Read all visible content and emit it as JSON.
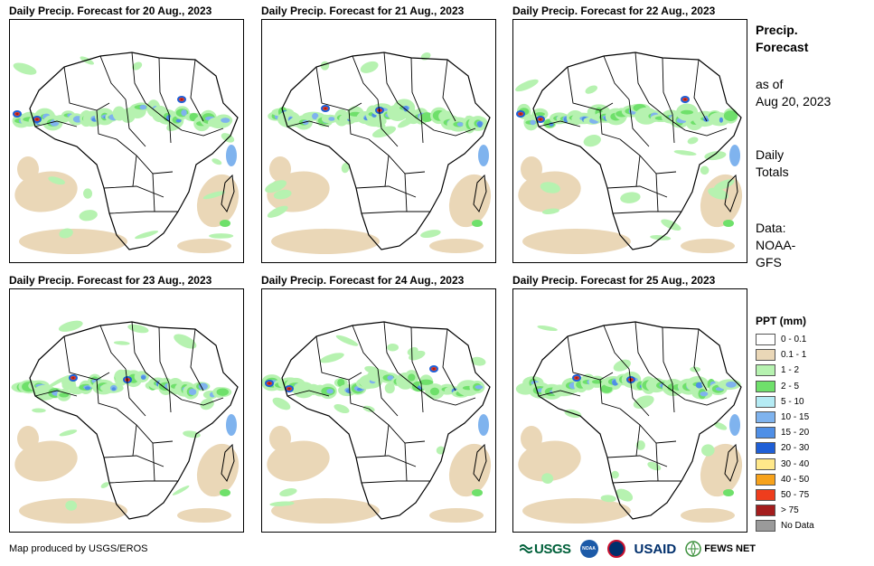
{
  "panels": [
    {
      "title": "Daily Precip. Forecast for 20 Aug., 2023"
    },
    {
      "title": "Daily Precip. Forecast for 21 Aug., 2023"
    },
    {
      "title": "Daily Precip. Forecast for 22 Aug., 2023"
    },
    {
      "title": "Daily Precip. Forecast for 23 Aug., 2023"
    },
    {
      "title": "Daily Precip. Forecast for 24 Aug., 2023"
    },
    {
      "title": "Daily Precip. Forecast for 25 Aug., 2023"
    }
  ],
  "sidebar": {
    "heading_line1": "Precip.",
    "heading_line2": "Forecast",
    "asof_line1": "as of",
    "asof_line2": "Aug 20, 2023",
    "totals_line1": "Daily",
    "totals_line2": "Totals",
    "data_line1": "Data:",
    "data_line2": "NOAA-",
    "data_line3": "GFS"
  },
  "legend": {
    "title": "PPT (mm)",
    "items": [
      {
        "label": "0 - 0.1",
        "color": "#ffffff"
      },
      {
        "label": "0.1 - 1",
        "color": "#ead7b7"
      },
      {
        "label": "1 - 2",
        "color": "#b6f2b0"
      },
      {
        "label": "2 - 5",
        "color": "#6fe06b"
      },
      {
        "label": "5 - 10",
        "color": "#b5ebf4"
      },
      {
        "label": "10 - 15",
        "color": "#7fb3ee"
      },
      {
        "label": "15 - 20",
        "color": "#4f8fe6"
      },
      {
        "label": "20 - 30",
        "color": "#1f5fd6"
      },
      {
        "label": "30 - 40",
        "color": "#ffe88a"
      },
      {
        "label": "40 - 50",
        "color": "#f7a21b"
      },
      {
        "label": "50 - 75",
        "color": "#ee3d1d"
      },
      {
        "label": "> 75",
        "color": "#a41d1d"
      },
      {
        "label": "No Data",
        "color": "#9a9a9a"
      }
    ]
  },
  "footer": {
    "credit": "Map produced by USGS/EROS",
    "logo_usgs": "USGS",
    "logo_noaa": "NOAA",
    "logo_usaid": "USAID",
    "logo_fews": "FEWS NET"
  }
}
